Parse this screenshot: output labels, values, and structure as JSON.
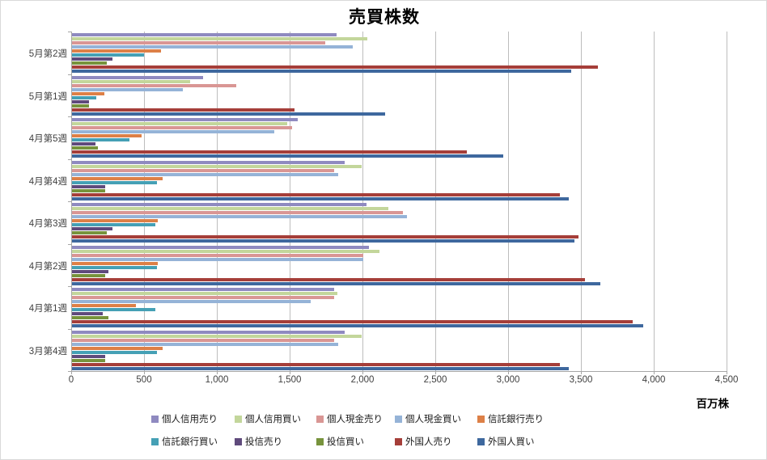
{
  "window": {
    "title": "売買株数"
  },
  "chart_data": {
    "type": "bar",
    "orientation": "horizontal",
    "title": "売買株数",
    "xlabel": "",
    "ylabel": "",
    "unit_label": "百万株",
    "xlim": [
      0,
      4500
    ],
    "grid": true,
    "legend_position": "bottom",
    "xticks": [
      0,
      500,
      1000,
      1500,
      2000,
      2500,
      3000,
      3500,
      4000,
      4500
    ],
    "xtick_labels": [
      "0",
      "500",
      "1,000",
      "1,500",
      "2,000",
      "2,500",
      "3,000",
      "3,500",
      "4,000",
      "4,500"
    ],
    "categories": [
      "5月第2週",
      "5月第1週",
      "4月第5週",
      "4月第4週",
      "4月第3週",
      "4月第2週",
      "4月第1週",
      "3月第4週"
    ],
    "series": [
      {
        "name": "個人信用売り",
        "color": "#8f8ac0",
        "values": [
          1815,
          900,
          1550,
          1870,
          2020,
          2040,
          1800,
          1870
        ]
      },
      {
        "name": "個人信用買い",
        "color": "#c3d69b",
        "values": [
          2030,
          810,
          1480,
          1990,
          2170,
          2110,
          1820,
          1990
        ]
      },
      {
        "name": "個人現金売り",
        "color": "#d99694",
        "values": [
          1740,
          1130,
          1510,
          1800,
          2270,
          2000,
          1800,
          1800
        ]
      },
      {
        "name": "個人現金買い",
        "color": "#95b3d7",
        "values": [
          1930,
          760,
          1390,
          1830,
          2300,
          2000,
          1640,
          1830
        ]
      },
      {
        "name": "信託銀行売り",
        "color": "#dd8047",
        "values": [
          610,
          220,
          480,
          620,
          590,
          590,
          440,
          620
        ]
      },
      {
        "name": "信託銀行買い",
        "color": "#45a0b5",
        "values": [
          495,
          165,
          395,
          585,
          570,
          585,
          570,
          585
        ]
      },
      {
        "name": "投信売り",
        "color": "#5f4a7c",
        "values": [
          280,
          115,
          160,
          230,
          275,
          250,
          210,
          230
        ]
      },
      {
        "name": "投信買い",
        "color": "#77933c",
        "values": [
          240,
          115,
          175,
          230,
          240,
          230,
          250,
          230
        ]
      },
      {
        "name": "外国人売り",
        "color": "#a53e39",
        "values": [
          3610,
          1530,
          2710,
          3350,
          3480,
          3520,
          3850,
          3350
        ]
      },
      {
        "name": "外国人買い",
        "color": "#3e689e",
        "values": [
          3430,
          2150,
          2960,
          3410,
          3450,
          3630,
          3920,
          3410
        ]
      }
    ],
    "legend_rows": [
      [
        "個人信用売り",
        "個人信用買い",
        "個人現金売り",
        "個人現金買い",
        "信託銀行売り"
      ],
      [
        "信託銀行買い",
        "投信売り",
        "投信買い",
        "外国人売り",
        "外国人買い"
      ]
    ]
  }
}
